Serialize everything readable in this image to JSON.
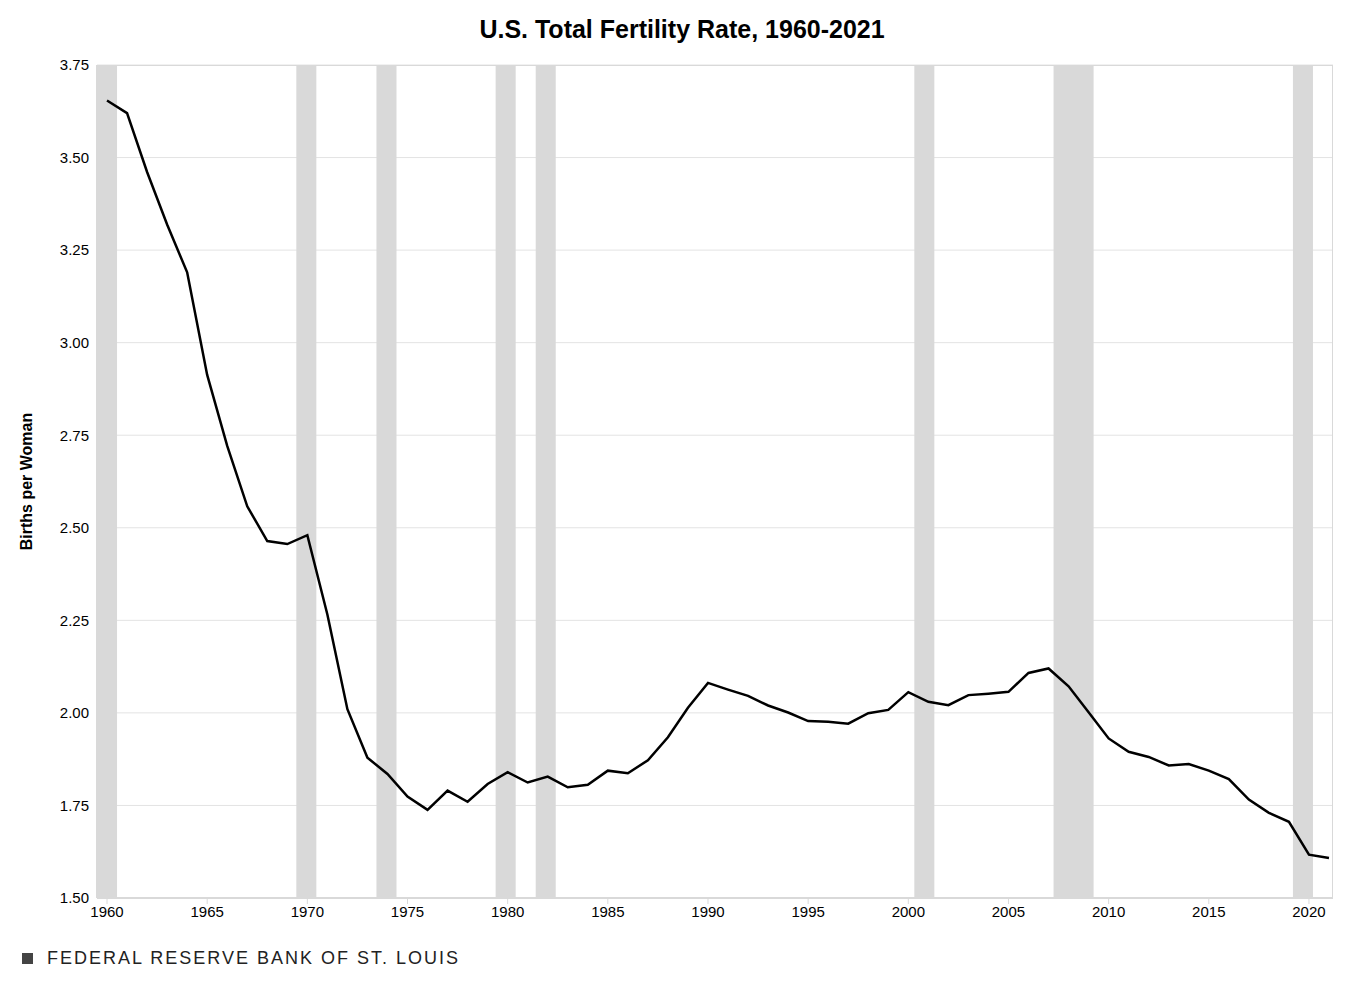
{
  "chart_data": {
    "type": "line",
    "title": "U.S. Total Fertility Rate, 1960-2021",
    "y_label": "Births per Woman",
    "source": "FEDERAL RESERVE BANK OF ST. LOUIS",
    "x": [
      1960,
      1961,
      1962,
      1963,
      1964,
      1965,
      1966,
      1967,
      1968,
      1969,
      1970,
      1971,
      1972,
      1973,
      1974,
      1975,
      1976,
      1977,
      1978,
      1979,
      1980,
      1981,
      1982,
      1983,
      1984,
      1985,
      1986,
      1987,
      1988,
      1989,
      1990,
      1991,
      1992,
      1993,
      1994,
      1995,
      1996,
      1997,
      1998,
      1999,
      2000,
      2001,
      2002,
      2003,
      2004,
      2005,
      2006,
      2007,
      2008,
      2009,
      2010,
      2011,
      2012,
      2013,
      2014,
      2015,
      2016,
      2017,
      2018,
      2019,
      2020,
      2021
    ],
    "values": [
      3.654,
      3.62,
      3.461,
      3.319,
      3.19,
      2.913,
      2.721,
      2.558,
      2.464,
      2.456,
      2.48,
      2.266,
      2.01,
      1.879,
      1.835,
      1.774,
      1.738,
      1.79,
      1.76,
      1.808,
      1.84,
      1.812,
      1.828,
      1.799,
      1.806,
      1.844,
      1.837,
      1.872,
      1.934,
      2.014,
      2.081,
      2.063,
      2.046,
      2.02,
      2.001,
      1.978,
      1.976,
      1.971,
      1.999,
      2.008,
      2.056,
      2.03,
      2.021,
      2.048,
      2.052,
      2.057,
      2.108,
      2.12,
      2.072,
      2.002,
      1.931,
      1.895,
      1.881,
      1.858,
      1.862,
      1.844,
      1.821,
      1.766,
      1.73,
      1.706,
      1.617,
      1.608
    ],
    "color": "#000000",
    "xlim": [
      1959.5,
      2021.2
    ],
    "ylim": [
      1.5,
      3.75
    ],
    "xticks": [
      1960,
      1965,
      1970,
      1975,
      1980,
      1985,
      1990,
      1995,
      2000,
      2005,
      2010,
      2015,
      2020
    ],
    "yticks": [
      {
        "value": 1.5,
        "label": "1.50"
      },
      {
        "value": 1.75,
        "label": "1.75"
      },
      {
        "value": 2,
        "label": "2.00"
      },
      {
        "value": 2.25,
        "label": "2.25"
      },
      {
        "value": 2.5,
        "label": "2.50"
      },
      {
        "value": 2.75,
        "label": "2.75"
      },
      {
        "value": 3,
        "label": "3.00"
      },
      {
        "value": 3.25,
        "label": "3.25"
      },
      {
        "value": 3.5,
        "label": "3.50"
      },
      {
        "value": 3.75,
        "label": "3.75"
      }
    ],
    "grid": true,
    "shaded_ranges": [
      [
        1959.5,
        1960.5
      ],
      [
        1969.45,
        1970.45
      ],
      [
        1973.45,
        1974.45
      ],
      [
        1979.4,
        1980.4
      ],
      [
        1981.4,
        1982.4
      ],
      [
        2000.3,
        2001.3
      ],
      [
        2007.25,
        2009.25
      ],
      [
        2019.2,
        2020.2
      ]
    ]
  }
}
